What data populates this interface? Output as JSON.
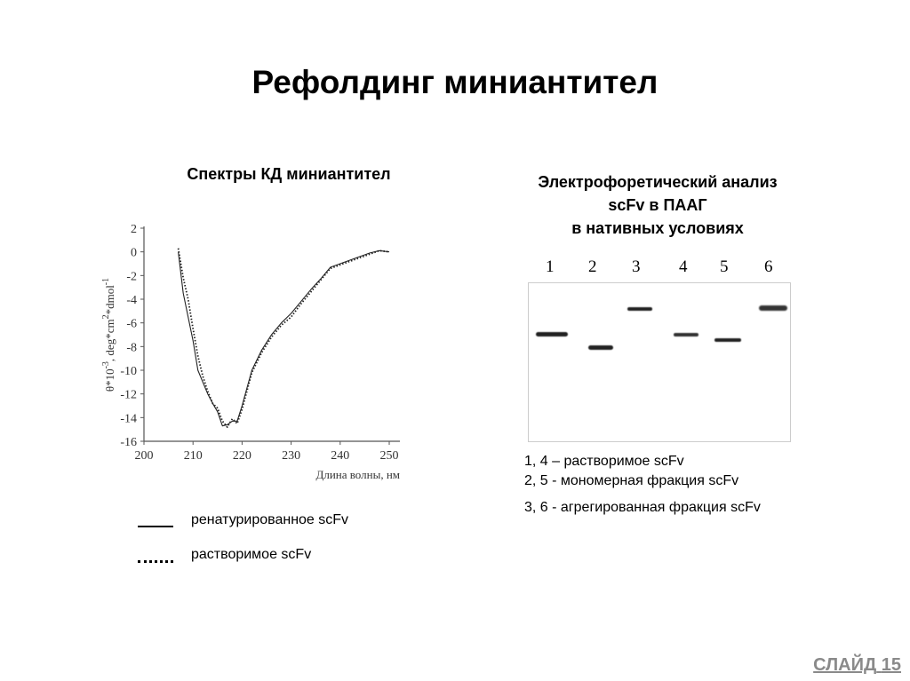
{
  "slide": {
    "title": "Рефолдинг миниантител",
    "number_label": "СЛАЙД",
    "number": "15"
  },
  "left_panel": {
    "heading": "Спектры КД миниантител",
    "legend": [
      {
        "style": "solid",
        "label": "ренатурированное scFv"
      },
      {
        "style": "dotted",
        "label": "растворимое scFv"
      }
    ]
  },
  "right_panel": {
    "heading_lines": [
      "Электрофоретический анализ",
      "scFv в ПААГ",
      "в нативных условиях"
    ],
    "lanes": [
      "1",
      "2",
      "3",
      "4",
      "5",
      "6"
    ],
    "notes": [
      "1, 4 – растворимое  scFv",
      "2, 5 -  мономерная фракция scFv",
      "3, 6 -  агрегированная фракция scFv"
    ]
  },
  "chart_data": {
    "type": "line",
    "title": "Спектры КД миниантител",
    "xlabel": "Длина волны, нм",
    "ylabel": "θ*10^-3, deg*cm^2*dmol^-1",
    "xlim": [
      200,
      250
    ],
    "ylim": [
      -16,
      2
    ],
    "x_ticks": [
      200,
      210,
      220,
      230,
      240,
      250
    ],
    "y_ticks": [
      2,
      0,
      -2,
      -4,
      -6,
      -8,
      -10,
      -12,
      -14,
      -16
    ],
    "grid": false,
    "legend_position": "below",
    "series": [
      {
        "name": "ренатурированное scFv",
        "style": "solid",
        "x": [
          207,
          208,
          209,
          210,
          211,
          212,
          213,
          214,
          215,
          216,
          217,
          218,
          219,
          220,
          222,
          224,
          226,
          228,
          230,
          232,
          234,
          236,
          238,
          240,
          242,
          244,
          246,
          248,
          250
        ],
        "y": [
          0,
          -3.5,
          -5.5,
          -7.5,
          -10,
          -11,
          -12,
          -12.8,
          -13.5,
          -14.7,
          -14.6,
          -14.3,
          -14.3,
          -13,
          -10,
          -8.3,
          -7,
          -6,
          -5.2,
          -4.2,
          -3.2,
          -2.3,
          -1.3,
          -1.0,
          -0.7,
          -0.4,
          -0.1,
          0.1,
          0
        ]
      },
      {
        "name": "растворимое scFv",
        "style": "dotted",
        "x": [
          207,
          208,
          209,
          210,
          211,
          212,
          213,
          214,
          215,
          216,
          217,
          218,
          219,
          220,
          222,
          224,
          226,
          228,
          230,
          232,
          234,
          236,
          238,
          240,
          242,
          244,
          246,
          248,
          250
        ],
        "y": [
          0.3,
          -2.2,
          -4,
          -6.5,
          -8.8,
          -10.5,
          -11.8,
          -12.8,
          -13.2,
          -14.3,
          -14.8,
          -14.1,
          -14.5,
          -13.3,
          -10.2,
          -8.5,
          -7.2,
          -6.2,
          -5.5,
          -4.4,
          -3.4,
          -2.4,
          -1.4,
          -1.1,
          -0.8,
          -0.5,
          -0.2,
          0.1,
          0
        ]
      }
    ]
  }
}
